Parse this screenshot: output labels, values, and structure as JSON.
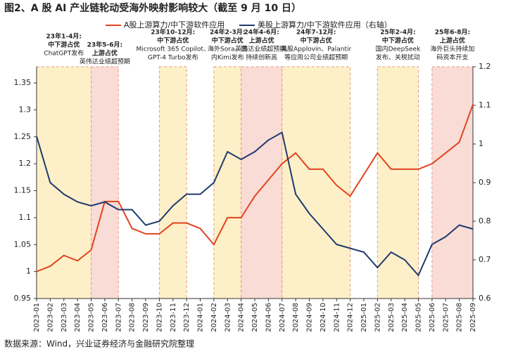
{
  "chart_data": {
    "type": "line",
    "title": "图2、A 股 AI 产业链轮动受海外映射影响较大（截至 9 月 10 日）",
    "source": "数据来源：Wind，兴业证券经济与金融研究院整理",
    "categories": [
      "2023-01",
      "2023-02",
      "2023-03",
      "2023-04",
      "2023-05",
      "2023-06",
      "2023-07",
      "2023-08",
      "2023-09",
      "2023-10",
      "2023-11",
      "2023-12",
      "2024-01",
      "2024-02",
      "2024-03",
      "2024-04",
      "2024-05",
      "2024-06",
      "2024-07",
      "2024-08",
      "2024-09",
      "2024-10",
      "2024-11",
      "2024-12",
      "2025-01",
      "2025-02",
      "2025-03",
      "2025-04",
      "2025-05",
      "2025-06",
      "2025-07",
      "2025-08",
      "2025-09"
    ],
    "series": [
      {
        "name": "A股上游算力/中下游软件应用",
        "color": "#e2431e",
        "values": [
          1.0,
          1.01,
          1.03,
          1.02,
          1.04,
          1.13,
          1.13,
          1.08,
          1.07,
          1.07,
          1.09,
          1.09,
          1.08,
          1.05,
          1.1,
          1.1,
          1.14,
          1.17,
          1.2,
          1.22,
          1.19,
          1.19,
          1.16,
          1.14,
          1.18,
          1.22,
          1.19,
          1.19,
          1.19,
          1.2,
          1.22,
          1.24,
          1.31
        ]
      },
      {
        "name": "美股上游算力/中下游软件应用（右轴）",
        "color": "#1f3a6e",
        "axis": "y2",
        "values": [
          1.02,
          0.9,
          0.87,
          0.85,
          0.84,
          0.85,
          0.83,
          0.83,
          0.79,
          0.8,
          0.84,
          0.87,
          0.87,
          0.9,
          0.98,
          0.96,
          0.98,
          1.01,
          1.03,
          0.87,
          0.82,
          0.78,
          0.74,
          0.73,
          0.72,
          0.68,
          0.72,
          0.7,
          0.66,
          0.74,
          0.76,
          0.79,
          0.78
        ]
      }
    ],
    "ylim": [
      0.95,
      1.38
    ],
    "yticks": [
      0.95,
      1,
      1.05,
      1.1,
      1.15,
      1.2,
      1.25,
      1.3,
      1.35
    ],
    "y2lim": [
      0.6,
      1.2
    ],
    "y2ticks": [
      0.6,
      0.7,
      0.8,
      0.9,
      1,
      1.1,
      1.2
    ],
    "regions": [
      {
        "start": "2023-01",
        "end": "2023-05",
        "color": "#fdf0c8",
        "label": [
          "23年1-4月:",
          "中下游占优",
          "ChatGPT发布"
        ]
      },
      {
        "start": "2023-05",
        "end": "2023-07",
        "color": "#f9dcd6",
        "label": [
          "23年5-6月:",
          "上游占优",
          "英伟达业绩超预期"
        ]
      },
      {
        "start": "2023-10",
        "end": "2023-12",
        "color": "#fdf0c8",
        "label": [
          "23年10-12月:",
          "中下游占优",
          "Microsoft 365 Copilot、",
          "GPT-4 Turbo发布"
        ]
      },
      {
        "start": "2024-02",
        "end": "2024-04",
        "color": "#fdf0c8",
        "label": [
          "24年2-3月:",
          "中下游占优",
          "海外Sora、国",
          "内Kimi发布"
        ]
      },
      {
        "start": "2024-04",
        "end": "2024-07",
        "color": "#f9dcd6",
        "label": [
          "24年4-6月:",
          "上游占优",
          "英伟达业绩超预期,",
          "持续创新高"
        ]
      },
      {
        "start": "2024-07",
        "end": "2024-12",
        "color": "#fdf0c8",
        "label": [
          "24年7-12月:",
          "中下游占优",
          "美股Applovin、Palantir",
          "等应用公司业绩超预期"
        ]
      },
      {
        "start": "2025-02",
        "end": "2025-05",
        "color": "#fdf0c8",
        "label": [
          "25年2-4月:",
          "中下游占优",
          "国内DeepSeek",
          "发布、关税扰动"
        ]
      },
      {
        "start": "2025-06",
        "end": "2025-09",
        "color": "#f9dcd6",
        "label": [
          "25年6-8月:",
          "上游占优",
          "海外巨头持续加",
          "码资本开支"
        ]
      }
    ]
  }
}
